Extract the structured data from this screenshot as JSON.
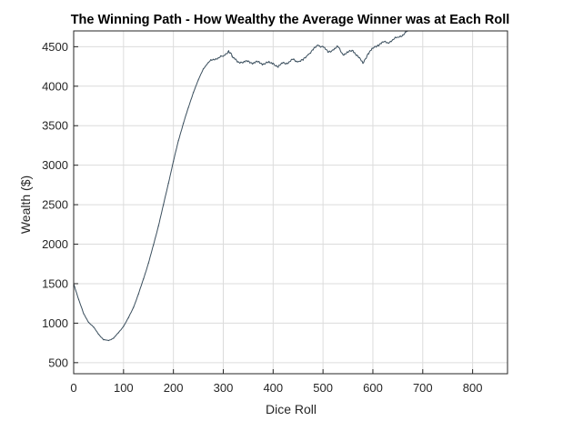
{
  "chart_data": {
    "type": "line",
    "title": "The Winning Path - How Wealthy the Average Winner was at Each Roll",
    "xlabel": "Dice Roll",
    "ylabel": "Wealth ($)",
    "xlim": [
      0,
      870
    ],
    "ylim": [
      360,
      4700
    ],
    "xticks": [
      0,
      100,
      200,
      300,
      400,
      500,
      600,
      700,
      800
    ],
    "yticks": [
      500,
      1000,
      1500,
      2000,
      2500,
      3000,
      3500,
      4000,
      4500
    ],
    "grid": true,
    "series": [
      {
        "color": "#3b4f5e",
        "points": [
          [
            0,
            1500
          ],
          [
            10,
            1300
          ],
          [
            20,
            1120
          ],
          [
            30,
            1010
          ],
          [
            40,
            950
          ],
          [
            50,
            860
          ],
          [
            60,
            790
          ],
          [
            70,
            780
          ],
          [
            80,
            810
          ],
          [
            90,
            880
          ],
          [
            100,
            960
          ],
          [
            110,
            1070
          ],
          [
            120,
            1200
          ],
          [
            130,
            1370
          ],
          [
            140,
            1560
          ],
          [
            150,
            1760
          ],
          [
            160,
            1990
          ],
          [
            170,
            2230
          ],
          [
            180,
            2500
          ],
          [
            190,
            2770
          ],
          [
            200,
            3050
          ],
          [
            210,
            3310
          ],
          [
            220,
            3530
          ],
          [
            230,
            3730
          ],
          [
            240,
            3920
          ],
          [
            250,
            4080
          ],
          [
            260,
            4220
          ],
          [
            270,
            4300
          ],
          [
            280,
            4340
          ],
          [
            290,
            4360
          ],
          [
            300,
            4380
          ],
          [
            310,
            4440
          ],
          [
            315,
            4420
          ],
          [
            320,
            4360
          ],
          [
            330,
            4310
          ],
          [
            340,
            4300
          ],
          [
            350,
            4320
          ],
          [
            360,
            4290
          ],
          [
            370,
            4310
          ],
          [
            380,
            4280
          ],
          [
            390,
            4300
          ],
          [
            400,
            4290
          ],
          [
            410,
            4240
          ],
          [
            420,
            4300
          ],
          [
            430,
            4290
          ],
          [
            440,
            4340
          ],
          [
            450,
            4310
          ],
          [
            460,
            4330
          ],
          [
            470,
            4400
          ],
          [
            480,
            4460
          ],
          [
            490,
            4520
          ],
          [
            500,
            4500
          ],
          [
            510,
            4430
          ],
          [
            520,
            4460
          ],
          [
            530,
            4500
          ],
          [
            540,
            4400
          ],
          [
            550,
            4430
          ],
          [
            560,
            4450
          ],
          [
            570,
            4380
          ],
          [
            580,
            4290
          ],
          [
            590,
            4410
          ],
          [
            600,
            4480
          ],
          [
            610,
            4520
          ],
          [
            620,
            4560
          ],
          [
            630,
            4550
          ],
          [
            640,
            4590
          ],
          [
            650,
            4620
          ],
          [
            660,
            4650
          ],
          [
            670,
            4700
          ]
        ]
      }
    ]
  }
}
